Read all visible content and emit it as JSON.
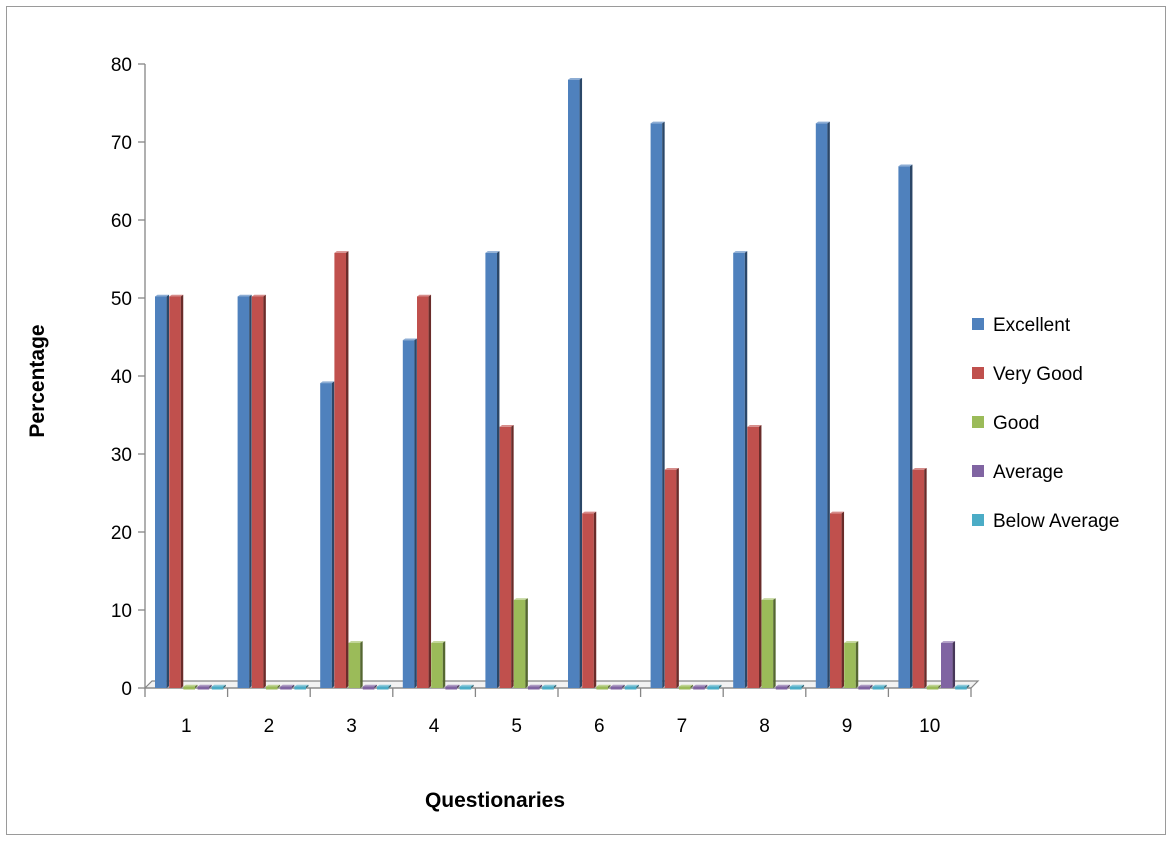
{
  "chart_data": {
    "type": "bar",
    "title": "",
    "xlabel": "Questionaries",
    "ylabel": "Percentage",
    "ylim": [
      0,
      80
    ],
    "yticks": [
      0,
      10,
      20,
      30,
      40,
      50,
      60,
      70,
      80
    ],
    "categories": [
      "1",
      "2",
      "3",
      "4",
      "5",
      "6",
      "7",
      "8",
      "9",
      "10"
    ],
    "legend_position": "right",
    "series": [
      {
        "name": "Excellent",
        "color": "#4F81BD",
        "values": [
          50,
          50,
          38.9,
          44.4,
          55.6,
          77.8,
          72.2,
          55.6,
          72.2,
          66.7
        ]
      },
      {
        "name": "Very Good",
        "color": "#C0504D",
        "values": [
          50,
          50,
          55.6,
          50,
          33.3,
          22.2,
          27.8,
          33.3,
          22.2,
          27.8
        ]
      },
      {
        "name": "Good",
        "color": "#9BBB59",
        "values": [
          0,
          0,
          5.6,
          5.6,
          11.1,
          0,
          0,
          11.1,
          5.6,
          0
        ]
      },
      {
        "name": "Average",
        "color": "#8064A2",
        "values": [
          0,
          0,
          0,
          0,
          0,
          0,
          0,
          0,
          0,
          5.6
        ]
      },
      {
        "name": "Below Average",
        "color": "#4BACC6",
        "values": [
          0,
          0,
          0,
          0,
          0,
          0,
          0,
          0,
          0,
          0
        ]
      }
    ]
  }
}
